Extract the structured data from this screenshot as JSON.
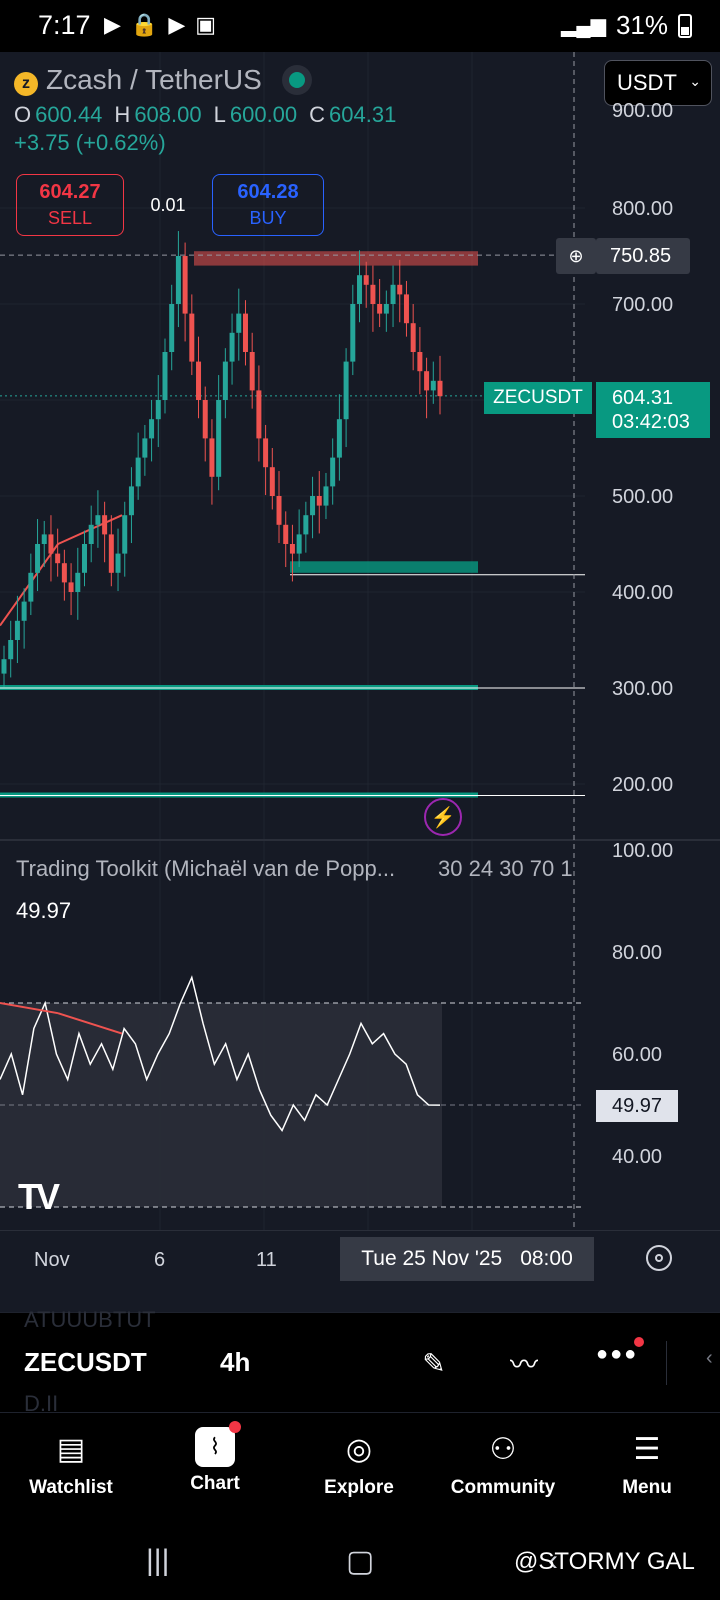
{
  "status_bar": {
    "time": "7:17",
    "battery": "31%"
  },
  "header": {
    "pair": "Zcash / TetherUS",
    "ohlc": [
      {
        "label": "O",
        "value": "600.44"
      },
      {
        "label": "H",
        "value": "608.00"
      },
      {
        "label": "L",
        "value": "600.00"
      },
      {
        "label": "C",
        "value": "604.31"
      }
    ],
    "change": "+3.75 (+0.62%)",
    "sell_price": "604.27",
    "sell_label": "SELL",
    "spread": "0.01",
    "buy_price": "604.28",
    "buy_label": "BUY"
  },
  "currency_select": "USDT",
  "price_axis": [
    "900.00",
    "800.00",
    "700.00",
    "500.00",
    "400.00",
    "300.00",
    "200.00"
  ],
  "crosshair_price": "750.85",
  "last_price_tag": {
    "symbol": "ZECUSDT",
    "price": "604.31",
    "countdown": "03:42:03"
  },
  "indicator": {
    "title": "Trading Toolkit (Michaël van de Popp...",
    "params": "30 24 30 70 1",
    "value": "49.97",
    "axis": [
      "100.00",
      "80.00",
      "60.00",
      "40.00"
    ],
    "value_tag": "49.97"
  },
  "time_axis": {
    "ticks": [
      "Nov",
      "6",
      "11"
    ],
    "crosshair_date": "Tue 25 Nov '25",
    "crosshair_time": "08:00"
  },
  "toolbar": {
    "symbol": "ZECUSDT",
    "interval": "4h",
    "ghost_top": "ATUUUBTUT",
    "ghost_bottom": "D.II"
  },
  "bottom_nav": [
    {
      "label": "Watchlist"
    },
    {
      "label": "Chart"
    },
    {
      "label": "Explore"
    },
    {
      "label": "Community"
    },
    {
      "label": "Menu"
    }
  ],
  "watermark": "@STORMY GAL",
  "colors": {
    "up": "#26a69a",
    "down": "#ef5350",
    "background": "#161a25",
    "buy": "#2962ff",
    "sell": "#f23645"
  },
  "chart_data": {
    "type": "candlestick",
    "symbol": "ZECUSDT",
    "interval": "4h",
    "y_range": [
      90,
      900
    ],
    "last_close": 604.31,
    "levels": [
      {
        "kind": "resistance-zone",
        "low": 740,
        "high": 755
      },
      {
        "kind": "support-zone",
        "low": 420,
        "high": 432
      },
      {
        "kind": "support-line",
        "value": 300
      },
      {
        "kind": "support-line",
        "value": 188
      }
    ],
    "closes": [
      330,
      350,
      370,
      390,
      420,
      450,
      460,
      440,
      430,
      410,
      400,
      420,
      450,
      470,
      480,
      460,
      420,
      440,
      480,
      510,
      540,
      560,
      580,
      600,
      650,
      700,
      750,
      690,
      640,
      600,
      560,
      520,
      600,
      640,
      670,
      690,
      650,
      610,
      560,
      530,
      500,
      470,
      450,
      440,
      460,
      480,
      500,
      490,
      510,
      540,
      580,
      640,
      700,
      730,
      720,
      700,
      690,
      700,
      720,
      710,
      680,
      650,
      630,
      610,
      620,
      604
    ],
    "indicator_series": [
      55,
      60,
      52,
      65,
      70,
      60,
      55,
      64,
      58,
      62,
      57,
      65,
      62,
      55,
      60,
      64,
      70,
      75,
      66,
      58,
      62,
      55,
      60,
      53,
      48,
      45,
      50,
      47,
      52,
      50,
      55,
      60,
      66,
      62,
      64,
      60,
      58,
      52,
      50,
      49.97
    ],
    "indicator_bounds": [
      30,
      70
    ]
  }
}
